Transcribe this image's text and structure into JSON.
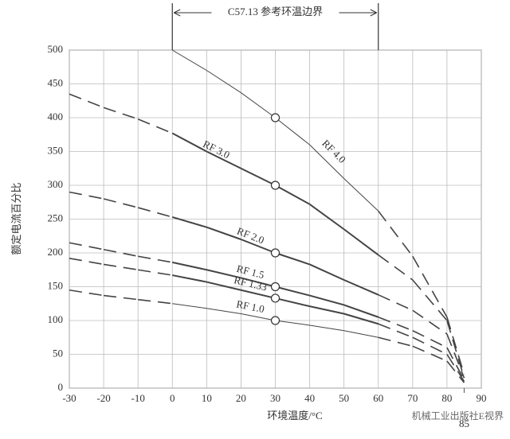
{
  "chart_data": {
    "type": "line",
    "annotation": "C57.13 参考环温边界",
    "annotation_xrange": [
      0,
      60
    ],
    "xlabel": "环境温度/°C",
    "ylabel": "额定电流百分比",
    "x": [
      -30,
      -20,
      -10,
      0,
      10,
      20,
      30,
      40,
      50,
      60,
      70,
      80,
      85
    ],
    "series": [
      {
        "name": "RF 4.0",
        "color": "#444444",
        "width": 1,
        "values": [
          null,
          null,
          null,
          500,
          470,
          437,
          400,
          360,
          310,
          262,
          195,
          105,
          20
        ]
      },
      {
        "name": "RF 3.0",
        "color": "#444444",
        "width": 2,
        "values": [
          435,
          415,
          398,
          377,
          350,
          325,
          300,
          272,
          235,
          197,
          160,
          100,
          15
        ]
      },
      {
        "name": "RF 2.0",
        "color": "#444444",
        "width": 2,
        "values": [
          290,
          280,
          267,
          253,
          238,
          220,
          200,
          183,
          160,
          138,
          115,
          80,
          15
        ]
      },
      {
        "name": "RF 1.5",
        "color": "#444444",
        "width": 2,
        "values": [
          215,
          205,
          195,
          186,
          175,
          163,
          150,
          137,
          123,
          105,
          85,
          60,
          12
        ]
      },
      {
        "name": "RF 1.33",
        "color": "#444444",
        "width": 2,
        "values": [
          192,
          183,
          175,
          167,
          157,
          145,
          133,
          121,
          110,
          95,
          75,
          50,
          10
        ]
      },
      {
        "name": "RF 1.0",
        "color": "#444444",
        "width": 1,
        "values": [
          145,
          137,
          131,
          125,
          118,
          110,
          100,
          93,
          85,
          75,
          62,
          40,
          8
        ]
      }
    ],
    "solid_xlim": [
      0,
      60
    ],
    "marker_at": 30,
    "xlim": [
      -30,
      90
    ],
    "xticks": [
      -30,
      -20,
      -10,
      0,
      10,
      20,
      30,
      40,
      50,
      60,
      70,
      80,
      90
    ],
    "x_note": {
      "value": 85,
      "label": "85"
    },
    "ylim": [
      0,
      500
    ],
    "yticks": [
      0,
      50,
      100,
      150,
      200,
      250,
      300,
      350,
      400,
      450,
      500
    ],
    "grid": true,
    "watermark": "机械工业出版社E视界"
  }
}
